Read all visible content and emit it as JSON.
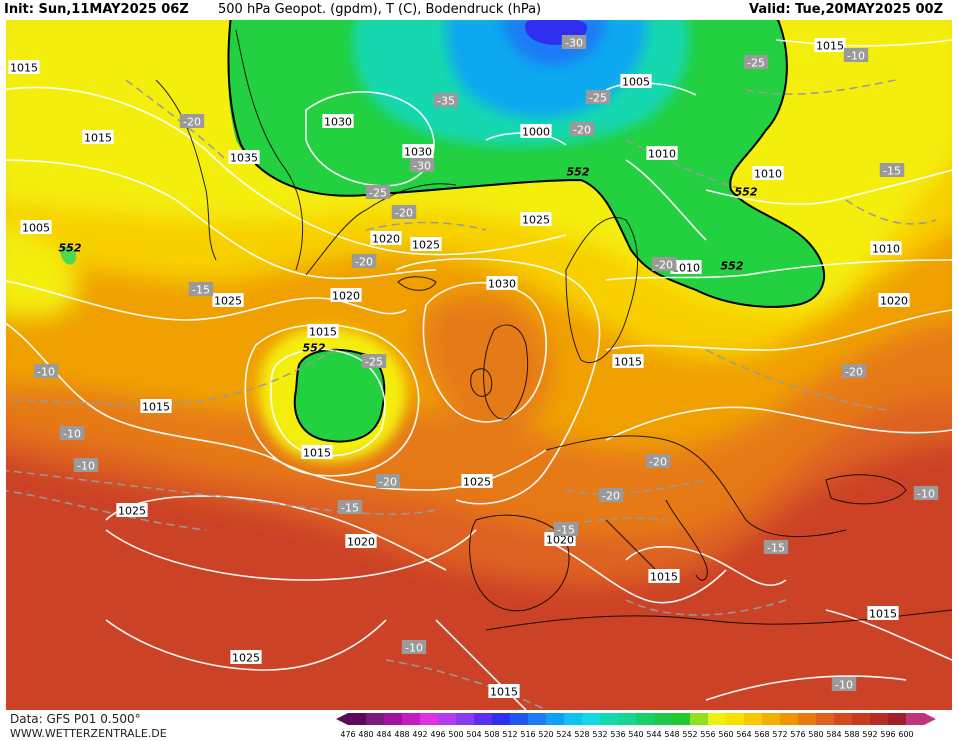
{
  "header": {
    "init": "Init: Sun,11MAY2025 06Z",
    "title": "500 hPa Geopot. (gpdm), T (C), Bodendruck (hPa)",
    "valid": "Valid: Tue,20MAY2025 00Z"
  },
  "footer": {
    "data_source": "Data: GFS P01 0.500°",
    "website": "WWW.WETTERZENTRALE.DE"
  },
  "legend": {
    "levels": [
      "476",
      "480",
      "484",
      "488",
      "492",
      "496",
      "500",
      "504",
      "508",
      "512",
      "516",
      "520",
      "524",
      "528",
      "532",
      "536",
      "540",
      "544",
      "548",
      "552",
      "556",
      "560",
      "564",
      "568",
      "572",
      "576",
      "580",
      "584",
      "588",
      "592",
      "596",
      "600"
    ],
    "colors": [
      "#5a0a5a",
      "#7a1a7a",
      "#a0139c",
      "#c21cc4",
      "#dd33e0",
      "#b43cf0",
      "#8a3cf0",
      "#5a2df0",
      "#2f2ff0",
      "#2055f0",
      "#1b7cf5",
      "#10a0f5",
      "#10c2f2",
      "#14d9e0",
      "#14d8b0",
      "#16d690",
      "#18d06a",
      "#1ec94a",
      "#22c830",
      "#8fe020",
      "#f0f010",
      "#f8e000",
      "#f8c800",
      "#f4b000",
      "#f09400",
      "#ea7a10",
      "#e06020",
      "#d44a20",
      "#c83a22",
      "#b42c24",
      "#a0202a",
      "#c0347a"
    ]
  },
  "map": {
    "colors": {
      "green": "#22d040",
      "green_light": "#50d850",
      "cyan": "#14d8b0",
      "blue_light": "#10a8f0",
      "blue": "#1b7cf5",
      "yellow": "#f4ee10",
      "gold": "#f8d000",
      "orange": "#f0a000",
      "orange_dark": "#e67a14",
      "red_orange": "#de6220",
      "red": "#cc4226",
      "dark_red": "#b8302a"
    },
    "pressure_labels": [
      "1015",
      "1015",
      "1035",
      "1030",
      "1030",
      "1000",
      "1005",
      "1010",
      "1010",
      "1015",
      "1010",
      "1005",
      "1020",
      "1025",
      "1025",
      "1030",
      "1020",
      "1015",
      "1015",
      "1010",
      "1015",
      "1020",
      "1015",
      "1025",
      "1025",
      "1025",
      "1020",
      "1020",
      "1015",
      "1015",
      "1025",
      "1015"
    ],
    "temperature_labels": [
      "-30",
      "-25",
      "-35",
      "-25",
      "-20",
      "-20",
      "-30",
      "-25",
      "-20",
      "-20",
      "-20",
      "-15",
      "-25",
      "-10",
      "-10",
      "-10",
      "-15",
      "-20",
      "-20",
      "-20",
      "-15",
      "-15",
      "-10",
      "-10",
      "-10",
      "-15",
      "-20",
      "-10"
    ],
    "geopotential_labels": [
      "552",
      "552",
      "552",
      "552",
      "552"
    ]
  }
}
